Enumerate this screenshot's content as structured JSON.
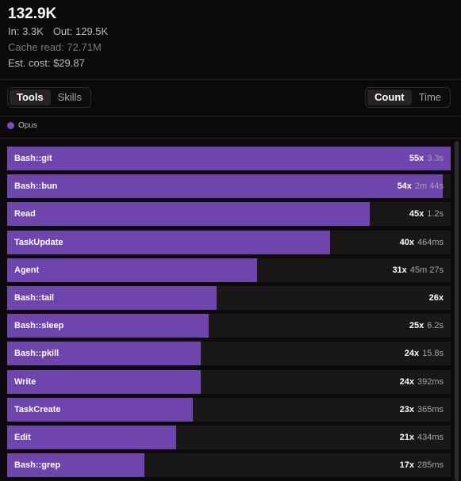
{
  "summary": {
    "total": "132.9K",
    "in_label": "In: 3.3K",
    "out_label": "Out: 129.5K",
    "cache_read": "Cache read: 72.71M",
    "est_cost": "Est. cost: $29.87"
  },
  "view_toggle": {
    "tools": "Tools",
    "skills": "Skills",
    "active": "Tools"
  },
  "metric_toggle": {
    "count": "Count",
    "time": "Time",
    "active": "Count"
  },
  "legend": {
    "label": "Opus",
    "color": "#7e4cc4"
  },
  "colors": {
    "bar": "#6e44ad",
    "track": "#1a1717"
  },
  "chart_data": {
    "type": "bar",
    "orientation": "horizontal",
    "series": [
      {
        "name": "Opus",
        "values": [
          55,
          54,
          45,
          40,
          31,
          26,
          25,
          24,
          24,
          23,
          21,
          17
        ]
      }
    ],
    "categories": [
      "Bash::git",
      "Bash::bun",
      "Read",
      "TaskUpdate",
      "Agent",
      "Bash::tail",
      "Bash::sleep",
      "Bash::pkill",
      "Write",
      "TaskCreate",
      "Edit",
      "Bash::grep"
    ],
    "count_labels": [
      "55x",
      "54x",
      "45x",
      "40x",
      "31x",
      "26x",
      "25x",
      "24x",
      "24x",
      "23x",
      "21x",
      "17x"
    ],
    "time_labels": [
      "3.3s",
      "2m 44s",
      "1.2s",
      "464ms",
      "45m 27s",
      "",
      "6.2s",
      "15.8s",
      "392ms",
      "365ms",
      "434ms",
      "285ms"
    ],
    "max": 55
  }
}
